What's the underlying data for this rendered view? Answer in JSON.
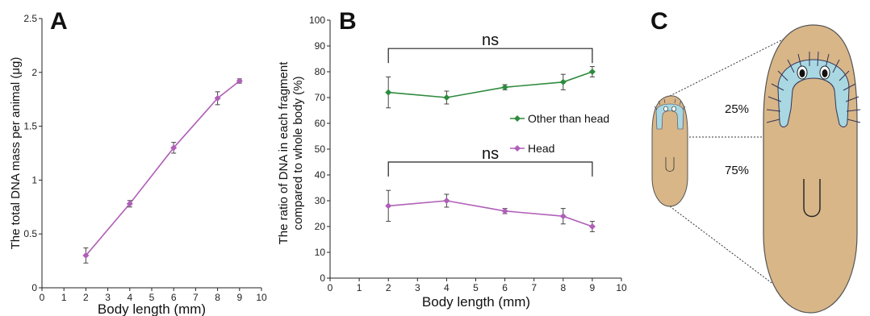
{
  "chart_data": [
    {
      "type": "line",
      "panel_label": "A",
      "xlabel": "Body length (mm)",
      "ylabel": "The total DNA mass per animal (μg)",
      "xlim": [
        0,
        10
      ],
      "ylim": [
        0,
        2.5
      ],
      "xticks": [
        "0",
        "1",
        "2",
        "3",
        "4",
        "5",
        "6",
        "7",
        "8",
        "9",
        "10"
      ],
      "yticks": [
        "0",
        "0.5",
        "1",
        "1.5",
        "2",
        "2.5"
      ],
      "color": "#b05fb8",
      "series": [
        {
          "x": [
            2,
            4,
            6,
            8,
            9
          ],
          "values": [
            0.3,
            0.78,
            1.3,
            1.76,
            1.92
          ],
          "error": [
            0.07,
            0.03,
            0.05,
            0.06,
            0.02
          ]
        }
      ]
    },
    {
      "type": "line",
      "panel_label": "B",
      "xlabel": "Body length (mm)",
      "ylabel_lines": [
        "The ratio of DNA in each fragment",
        "compared to whole body (%)"
      ],
      "xlim": [
        0,
        10
      ],
      "ylim": [
        0,
        100
      ],
      "xticks": [
        "0",
        "1",
        "2",
        "3",
        "4",
        "5",
        "6",
        "7",
        "8",
        "9",
        "10"
      ],
      "yticks": [
        "0",
        "10",
        "20",
        "30",
        "40",
        "50",
        "60",
        "70",
        "80",
        "90",
        "100"
      ],
      "series": [
        {
          "name": "Other than head",
          "color": "#2e8b3e",
          "x": [
            2,
            4,
            6,
            8,
            9
          ],
          "values": [
            72,
            70,
            74,
            76,
            80
          ],
          "error": [
            6,
            2.5,
            1,
            3,
            2
          ]
        },
        {
          "name": "Head",
          "color": "#b05fb8",
          "x": [
            2,
            4,
            6,
            8,
            9
          ],
          "values": [
            28,
            30,
            26,
            24,
            20
          ],
          "error": [
            6,
            2.5,
            1,
            3,
            2
          ]
        }
      ],
      "annotations": [
        {
          "text": "ns",
          "x_from": 2,
          "x_to": 9,
          "y": 89
        },
        {
          "text": "ns",
          "x_from": 2,
          "x_to": 9,
          "y": 45
        }
      ]
    }
  ],
  "panel_c": {
    "label": "C",
    "head_fraction": "25%",
    "body_fraction": "75%",
    "colors": {
      "body": "#d8b688",
      "head_tissue": "#a9d8e2"
    }
  }
}
